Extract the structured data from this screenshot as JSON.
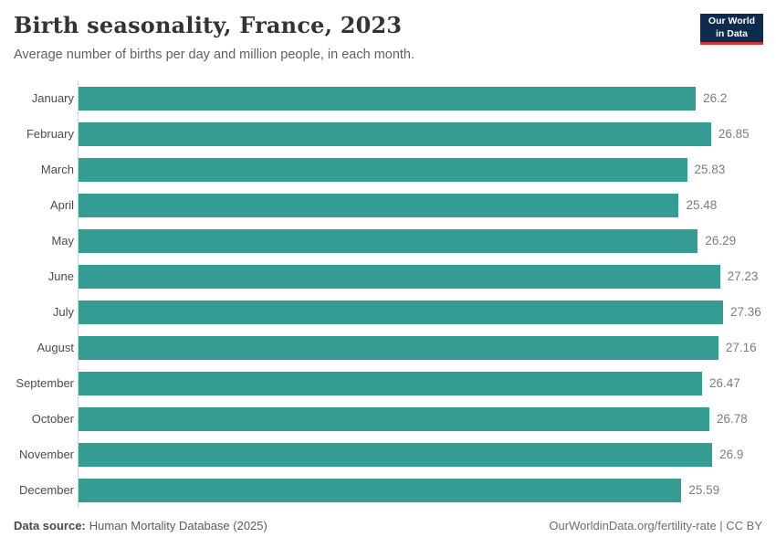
{
  "header": {
    "title": "Birth seasonality, France, 2023",
    "subtitle": "Average number of births per day and million people, in each month.",
    "logo": {
      "line1": "Our World",
      "line2": "in Data",
      "bg_color": "#0e2a4d",
      "stripe_color": "#d0352a"
    }
  },
  "chart_data": {
    "type": "bar",
    "orientation": "horizontal",
    "title": "Birth seasonality, France, 2023",
    "xlabel": "",
    "ylabel": "",
    "categories": [
      "January",
      "February",
      "March",
      "April",
      "May",
      "June",
      "July",
      "August",
      "September",
      "October",
      "November",
      "December"
    ],
    "values": [
      26.2,
      26.85,
      25.83,
      25.48,
      26.29,
      27.23,
      27.36,
      27.16,
      26.47,
      26.78,
      26.9,
      25.59
    ],
    "xlim": [
      0,
      27.36
    ],
    "grid": false,
    "legend": "none",
    "bar_color": "#359c94",
    "value_labels_shown": true
  },
  "footer": {
    "source_label": "Data source:",
    "source_text": "Human Mortality Database (2025)",
    "right_text": "OurWorldinData.org/fertility-rate | CC BY"
  }
}
